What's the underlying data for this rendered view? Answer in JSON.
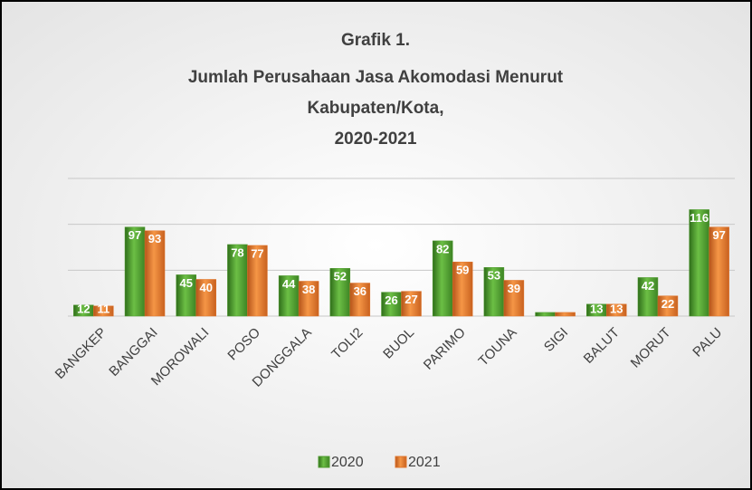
{
  "chart_data": {
    "type": "bar",
    "title": [
      "Grafik 1.",
      "Jumlah Perusahaan Jasa Akomodasi Menurut",
      "Kabupaten/Kota,",
      "2020-2021"
    ],
    "categories": [
      "BANGKEP",
      "BANGGAI",
      "MOROWALI",
      "POSO",
      "DONGGALA",
      "TOLI2",
      "BUOL",
      "PARIMO",
      "TOUNA",
      "SIGI",
      "BALUT",
      "MORUT",
      "PALU"
    ],
    "series": [
      {
        "name": "2020",
        "color": "#4e9a2e",
        "values": [
          12,
          97,
          45,
          78,
          44,
          52,
          26,
          82,
          53,
          4,
          13,
          42,
          116
        ],
        "value_labels": [
          12,
          97,
          45,
          78,
          44,
          52,
          26,
          82,
          53,
          null,
          13,
          42,
          116
        ]
      },
      {
        "name": "2021",
        "color": "#e0742a",
        "values": [
          11,
          93,
          40,
          77,
          38,
          36,
          27,
          59,
          39,
          4,
          13,
          22,
          97
        ],
        "value_labels": [
          11,
          93,
          40,
          77,
          38,
          36,
          27,
          59,
          39,
          null,
          13,
          22,
          97
        ]
      }
    ],
    "ylim": [
      0,
      150
    ],
    "yticks": [
      0,
      50,
      100,
      150
    ],
    "grid": true,
    "legend": "bottom"
  }
}
